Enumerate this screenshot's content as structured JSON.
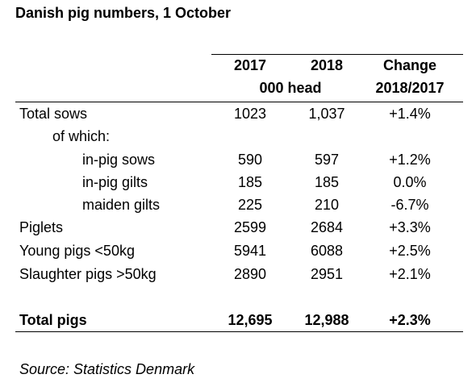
{
  "title": "Danish pig numbers, 1 October",
  "header": {
    "col1": "2017",
    "col2": "2018",
    "col3_line1": "Change",
    "units": "000 head",
    "col3_line2": "2018/2017"
  },
  "rows": [
    {
      "label": "Total sows",
      "v2017": "1023",
      "v2018": "1,037",
      "change": "+1.4%"
    },
    {
      "label": "of which:",
      "v2017": "",
      "v2018": "",
      "change": ""
    },
    {
      "label": "in-pig sows",
      "v2017": "590",
      "v2018": "597",
      "change": "+1.2%"
    },
    {
      "label": "in-pig gilts",
      "v2017": "185",
      "v2018": "185",
      "change": "0.0%"
    },
    {
      "label": "maiden gilts",
      "v2017": "225",
      "v2018": "210",
      "change": "-6.7%"
    },
    {
      "label": "Piglets",
      "v2017": "2599",
      "v2018": "2684",
      "change": "+3.3%"
    },
    {
      "label": "Young pigs <50kg",
      "v2017": "5941",
      "v2018": "6088",
      "change": "+2.5%"
    },
    {
      "label": "Slaughter pigs >50kg",
      "v2017": "2890",
      "v2018": "2951",
      "change": "+2.1%"
    }
  ],
  "total": {
    "label": "Total pigs",
    "v2017": "12,695",
    "v2018": "12,988",
    "change": "+2.3%"
  },
  "source": "Source: Statistics Denmark"
}
